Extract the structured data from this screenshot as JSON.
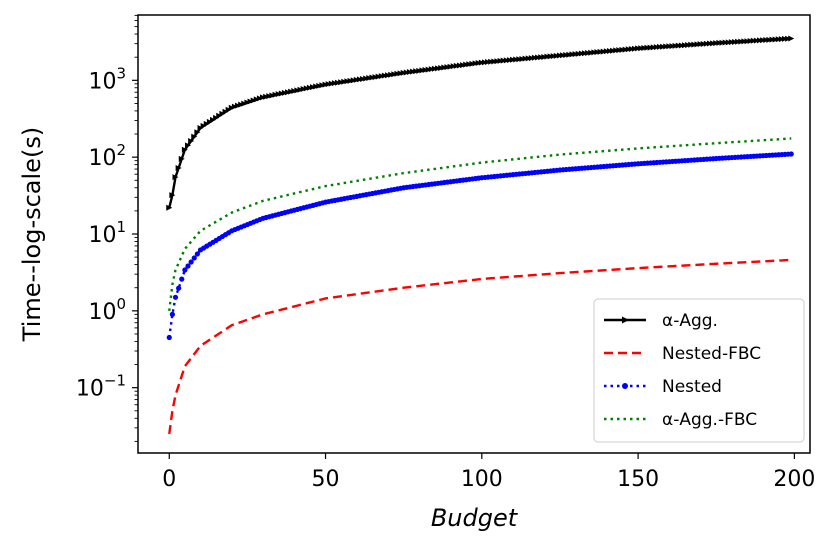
{
  "chart_data": {
    "type": "line",
    "xlabel": "Budget",
    "ylabel": "Time--log-scale(s)",
    "xlim": [
      -10,
      205
    ],
    "ylim_log10": [
      -1.85,
      3.85
    ],
    "y_scale": "log",
    "x_ticks": [
      0,
      50,
      100,
      150,
      200
    ],
    "x_tick_labels": [
      "0",
      "50",
      "100",
      "150",
      "200"
    ],
    "y_ticks_log10": [
      -1,
      0,
      1,
      2,
      3
    ],
    "y_tick_base": "10",
    "y_tick_exponents": [
      "−1",
      "0",
      "1",
      "2",
      "3"
    ],
    "grid": false,
    "legend_position": "lower-right",
    "series": [
      {
        "name": "α-Agg.",
        "color": "#000000",
        "style": "solid",
        "marker": "triangle-right",
        "x": [
          0,
          1,
          2,
          5,
          10,
          20,
          30,
          50,
          75,
          100,
          125,
          150,
          175,
          199
        ],
        "y": [
          22,
          32,
          55,
          125,
          240,
          440,
          600,
          880,
          1250,
          1700,
          2100,
          2600,
          3050,
          3500
        ]
      },
      {
        "name": "Nested-FBC",
        "color": "#ff0000",
        "style": "dashed",
        "marker": "none",
        "x": [
          0,
          1,
          2,
          5,
          10,
          20,
          30,
          50,
          75,
          100,
          125,
          150,
          175,
          199
        ],
        "y": [
          0.025,
          0.05,
          0.08,
          0.19,
          0.35,
          0.65,
          0.9,
          1.45,
          2.0,
          2.6,
          3.1,
          3.6,
          4.1,
          4.6
        ]
      },
      {
        "name": "Nested",
        "color": "#0000ff",
        "style": "dotted",
        "marker": "circle",
        "x": [
          0,
          1,
          2,
          5,
          10,
          20,
          30,
          50,
          75,
          100,
          125,
          150,
          175,
          199
        ],
        "y": [
          0.45,
          0.9,
          1.5,
          3.4,
          6.2,
          11,
          16,
          26,
          40,
          54,
          68,
          82,
          96,
          110
        ]
      },
      {
        "name": "α-Agg.-FBC",
        "color": "#008000",
        "style": "dotted",
        "marker": "none",
        "x": [
          0,
          1,
          2,
          5,
          10,
          20,
          30,
          50,
          75,
          100,
          125,
          150,
          175,
          199
        ],
        "y": [
          1.0,
          2.2,
          3.4,
          6.4,
          11,
          19,
          27,
          42,
          62,
          85,
          108,
          130,
          152,
          175
        ]
      }
    ],
    "colors": {
      "axis": "#000000",
      "legend_border": "#cccccc"
    }
  }
}
